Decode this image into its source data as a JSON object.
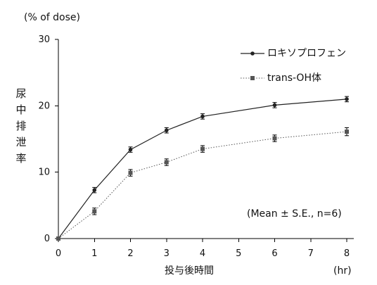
{
  "chart_data": {
    "type": "line",
    "x": [
      0,
      1,
      2,
      3,
      4,
      6,
      8
    ],
    "xlim": [
      0,
      8
    ],
    "xticks": [
      0,
      1,
      2,
      3,
      4,
      5,
      6,
      7,
      8
    ],
    "ylim": [
      0,
      30
    ],
    "yticks": [
      0,
      10,
      20,
      30
    ],
    "xlabel": "投与後時間",
    "xunit": "(hr)",
    "ylabel": "尿中排泄率",
    "yunit": "(% of dose)",
    "annotation": "(Mean ± S.E., n=6)",
    "legend_position": "top-right",
    "grid": false,
    "series": [
      {
        "name": "ロキソプロフェン",
        "marker": "circle",
        "line_style": "solid",
        "color": "#222222",
        "values": [
          0,
          7.3,
          13.4,
          16.3,
          18.4,
          20.1,
          21.0
        ],
        "errors": [
          0,
          0.4,
          0.4,
          0.4,
          0.4,
          0.4,
          0.4
        ]
      },
      {
        "name": "trans-OH体",
        "marker": "square",
        "line_style": "dotted",
        "color": "#555555",
        "values": [
          0,
          4.1,
          9.9,
          11.5,
          13.5,
          15.1,
          16.1
        ],
        "errors": [
          0,
          0.5,
          0.5,
          0.5,
          0.5,
          0.5,
          0.6
        ]
      }
    ]
  }
}
